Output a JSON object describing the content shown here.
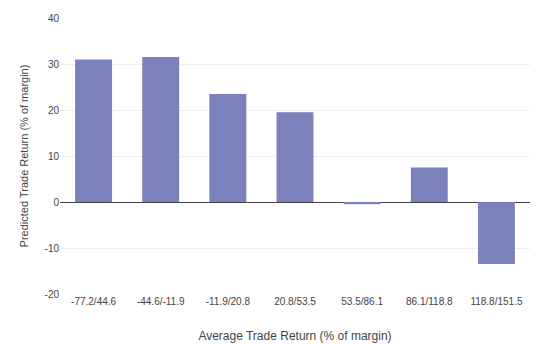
{
  "chart_data": {
    "type": "bar",
    "categories": [
      "-77.2/44.6",
      "-44.6/-11.9",
      "-11.9/20.8",
      "20.8/53.5",
      "53.5/86.1",
      "86.1/118.8",
      "118.8/151.5"
    ],
    "values": [
      31.0,
      31.5,
      23.5,
      19.5,
      -0.5,
      7.5,
      -13.5
    ],
    "color": "#7b82bb",
    "xlabel": "Average Trade Return (% of margin)",
    "ylabel": "Predicted Trade Return (% of margin)",
    "ylim": [
      -20,
      40
    ],
    "yticks": [
      -20,
      -10,
      0,
      10,
      20,
      30,
      40
    ],
    "grid": true
  }
}
